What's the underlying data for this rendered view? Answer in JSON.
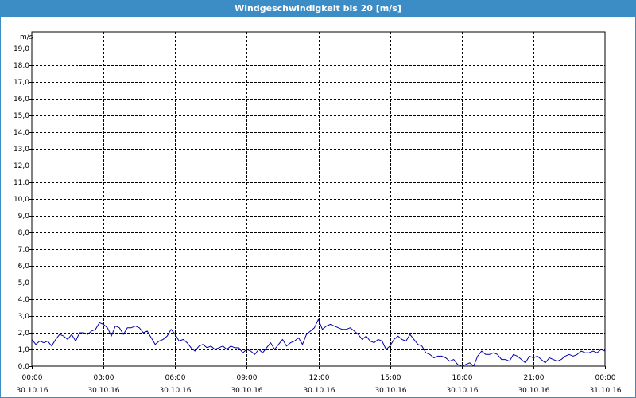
{
  "window": {
    "title": "Windgeschwindigkeit bis 20 [m/s]"
  },
  "colors": {
    "titlebar": "#3c8dc5",
    "series": "#0000aa",
    "grid": "#000000"
  },
  "chart_data": {
    "type": "line",
    "title": "Windgeschwindigkeit bis 20 [m/s]",
    "ylabel": "m/s",
    "xlabel": "",
    "ylim": [
      0,
      20
    ],
    "xlim": [
      "30.10.16 00:00",
      "31.10.16 00:00"
    ],
    "grid": true,
    "y_ticks": [
      "0,0",
      "1,0",
      "2,0",
      "3,0",
      "4,0",
      "5,0",
      "6,0",
      "7,0",
      "8,0",
      "9,0",
      "10,0",
      "11,0",
      "12,0",
      "13,0",
      "14,0",
      "15,0",
      "16,0",
      "17,0",
      "18,0",
      "19,0"
    ],
    "x_ticks": [
      {
        "time": "00:00",
        "date": "30.10.16"
      },
      {
        "time": "03:00",
        "date": "30.10.16"
      },
      {
        "time": "06:00",
        "date": "30.10.16"
      },
      {
        "time": "09:00",
        "date": "30.10.16"
      },
      {
        "time": "12:00",
        "date": "30.10.16"
      },
      {
        "time": "15:00",
        "date": "30.10.16"
      },
      {
        "time": "18:00",
        "date": "30.10.16"
      },
      {
        "time": "21:00",
        "date": "30.10.16"
      },
      {
        "time": "00:00",
        "date": "31.10.16"
      }
    ],
    "series": [
      {
        "x": [
          "00:00",
          "00:10",
          "00:20",
          "00:30",
          "00:40",
          "00:50",
          "01:00",
          "01:10",
          "01:20",
          "01:30",
          "01:40",
          "01:50",
          "02:00",
          "02:10",
          "02:20",
          "02:30",
          "02:40",
          "02:50",
          "03:00",
          "03:10",
          "03:20",
          "03:30",
          "03:40",
          "03:50",
          "04:00",
          "04:10",
          "04:20",
          "04:30",
          "04:40",
          "04:50",
          "05:00",
          "05:10",
          "05:20",
          "05:30",
          "05:40",
          "05:50",
          "06:00",
          "06:10",
          "06:20",
          "06:30",
          "06:40",
          "06:50",
          "07:00",
          "07:10",
          "07:20",
          "07:30",
          "07:40",
          "07:50",
          "08:00",
          "08:10",
          "08:20",
          "08:30",
          "08:40",
          "08:50",
          "09:00",
          "09:10",
          "09:20",
          "09:30",
          "09:40",
          "09:50",
          "10:00",
          "10:10",
          "10:20",
          "10:30",
          "10:40",
          "10:50",
          "11:00",
          "11:10",
          "11:20",
          "11:30",
          "11:40",
          "11:50",
          "12:00",
          "12:10",
          "12:20",
          "12:30",
          "12:40",
          "12:50",
          "13:00",
          "13:10",
          "13:20",
          "13:30",
          "13:40",
          "13:50",
          "14:00",
          "14:10",
          "14:20",
          "14:30",
          "14:40",
          "14:50",
          "15:00",
          "15:10",
          "15:20",
          "15:30",
          "15:40",
          "15:50",
          "16:00",
          "16:10",
          "16:20",
          "16:30",
          "16:40",
          "16:50",
          "17:00",
          "17:10",
          "17:20",
          "17:30",
          "17:40",
          "17:50",
          "18:00",
          "18:10",
          "18:20",
          "18:30",
          "18:40",
          "18:50",
          "19:00",
          "19:10",
          "19:20",
          "19:30",
          "19:40",
          "19:50",
          "20:00",
          "20:10",
          "20:20",
          "20:30",
          "20:40",
          "20:50",
          "21:00",
          "21:10",
          "21:20",
          "21:30",
          "21:40",
          "21:50",
          "22:00",
          "22:10",
          "22:20",
          "22:30",
          "22:40",
          "22:50",
          "23:00",
          "23:10",
          "23:20",
          "23:30",
          "23:40",
          "23:50",
          "24:00"
        ],
        "values": [
          1.6,
          1.3,
          1.5,
          1.4,
          1.5,
          1.2,
          1.6,
          1.9,
          1.8,
          1.6,
          1.9,
          1.5,
          2.0,
          2.0,
          1.9,
          2.1,
          2.2,
          2.6,
          2.5,
          2.3,
          1.8,
          2.4,
          2.3,
          1.9,
          2.3,
          2.3,
          2.4,
          2.3,
          2.0,
          2.1,
          1.7,
          1.3,
          1.5,
          1.6,
          1.8,
          2.2,
          1.9,
          1.5,
          1.6,
          1.4,
          1.1,
          0.9,
          1.2,
          1.3,
          1.1,
          1.2,
          1.0,
          1.1,
          1.2,
          1.0,
          1.2,
          1.1,
          1.1,
          0.8,
          1.0,
          0.9,
          0.7,
          1.0,
          0.8,
          1.1,
          1.4,
          1.0,
          1.3,
          1.6,
          1.2,
          1.4,
          1.5,
          1.7,
          1.3,
          1.9,
          2.1,
          2.3,
          2.8,
          2.2,
          2.4,
          2.5,
          2.4,
          2.3,
          2.2,
          2.2,
          2.3,
          2.1,
          1.9,
          1.6,
          1.8,
          1.5,
          1.4,
          1.6,
          1.5,
          1.0,
          1.2,
          1.6,
          1.8,
          1.6,
          1.5,
          1.9,
          1.6,
          1.3,
          1.2,
          0.8,
          0.7,
          0.5,
          0.6,
          0.6,
          0.5,
          0.3,
          0.4,
          0.1,
          0.0,
          0.1,
          0.2,
          0.0,
          0.6,
          0.9,
          0.7,
          0.7,
          0.8,
          0.7,
          0.4,
          0.4,
          0.3,
          0.7,
          0.6,
          0.4,
          0.2,
          0.6,
          0.5,
          0.6,
          0.4,
          0.2,
          0.5,
          0.4,
          0.3,
          0.4,
          0.6,
          0.7,
          0.6,
          0.7,
          0.9,
          0.8,
          0.8,
          0.9,
          0.8,
          1.0,
          0.9
        ]
      }
    ]
  }
}
